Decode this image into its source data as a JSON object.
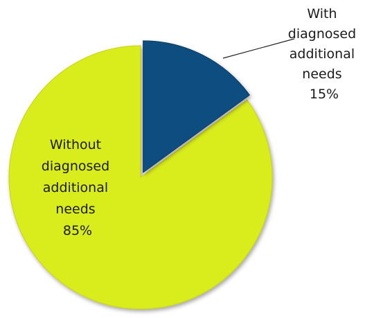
{
  "chart_data": {
    "type": "pie",
    "title": "",
    "slices": [
      {
        "name": "With diagnosed additional needs",
        "value": 15,
        "value_label": "15%",
        "label_lines": [
          "With",
          "diagnosed",
          "additional",
          "needs",
          "15%"
        ],
        "color": "#0d4d7f",
        "exploded": true
      },
      {
        "name": "Without diagnosed additional needs",
        "value": 85,
        "value_label": "85%",
        "label_lines": [
          "Without",
          "diagnosed",
          "additional",
          "needs",
          "85%"
        ],
        "color": "#d9ec1a",
        "exploded": false
      }
    ],
    "legend": "none"
  }
}
